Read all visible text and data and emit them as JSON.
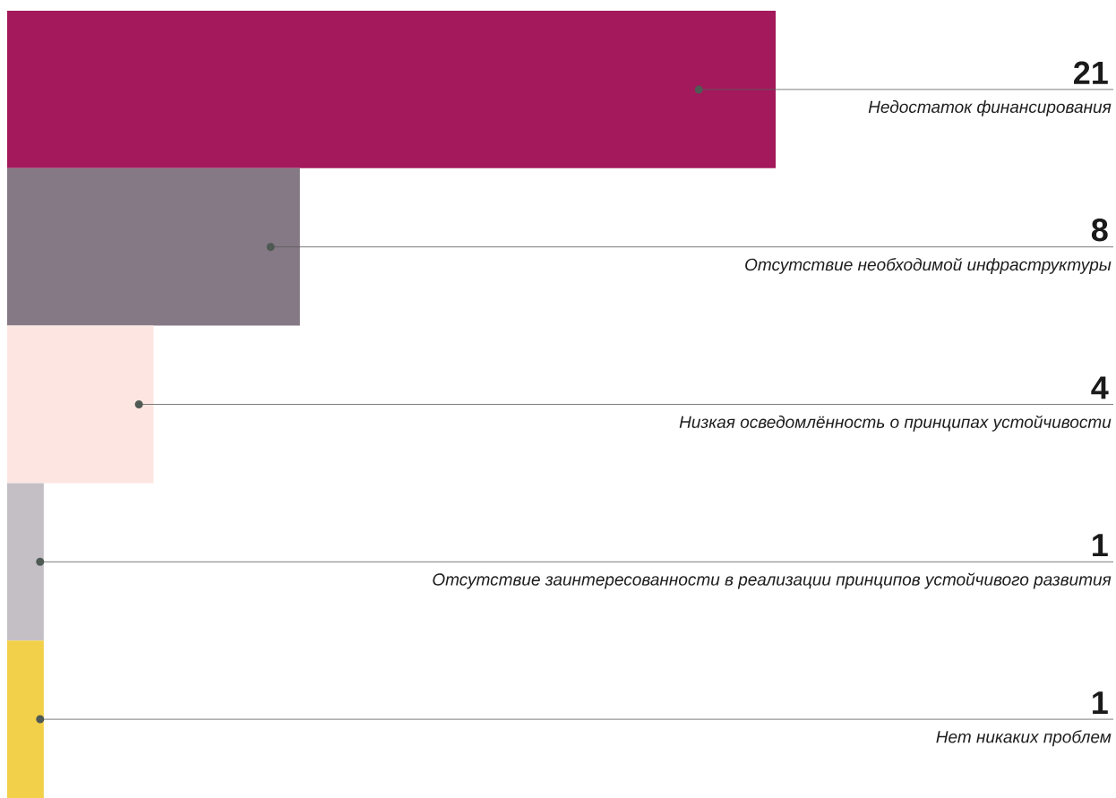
{
  "chart_data": {
    "type": "bar",
    "orientation": "horizontal",
    "data_labels": true,
    "categories": [
      "Недостаток финансирования",
      "Отсутствие необходимой инфраструктуры",
      "Низкая осведомлённость о принципах устойчивости",
      "Отсутствие заинтересованности в реализации принципов устойчивого развития",
      "Нет никаких проблем"
    ],
    "values": [
      21,
      8,
      4,
      1,
      1
    ],
    "colors": [
      "#a3195b",
      "#857985",
      "#fde6e1",
      "#c4bfc5",
      "#f2d049"
    ]
  }
}
